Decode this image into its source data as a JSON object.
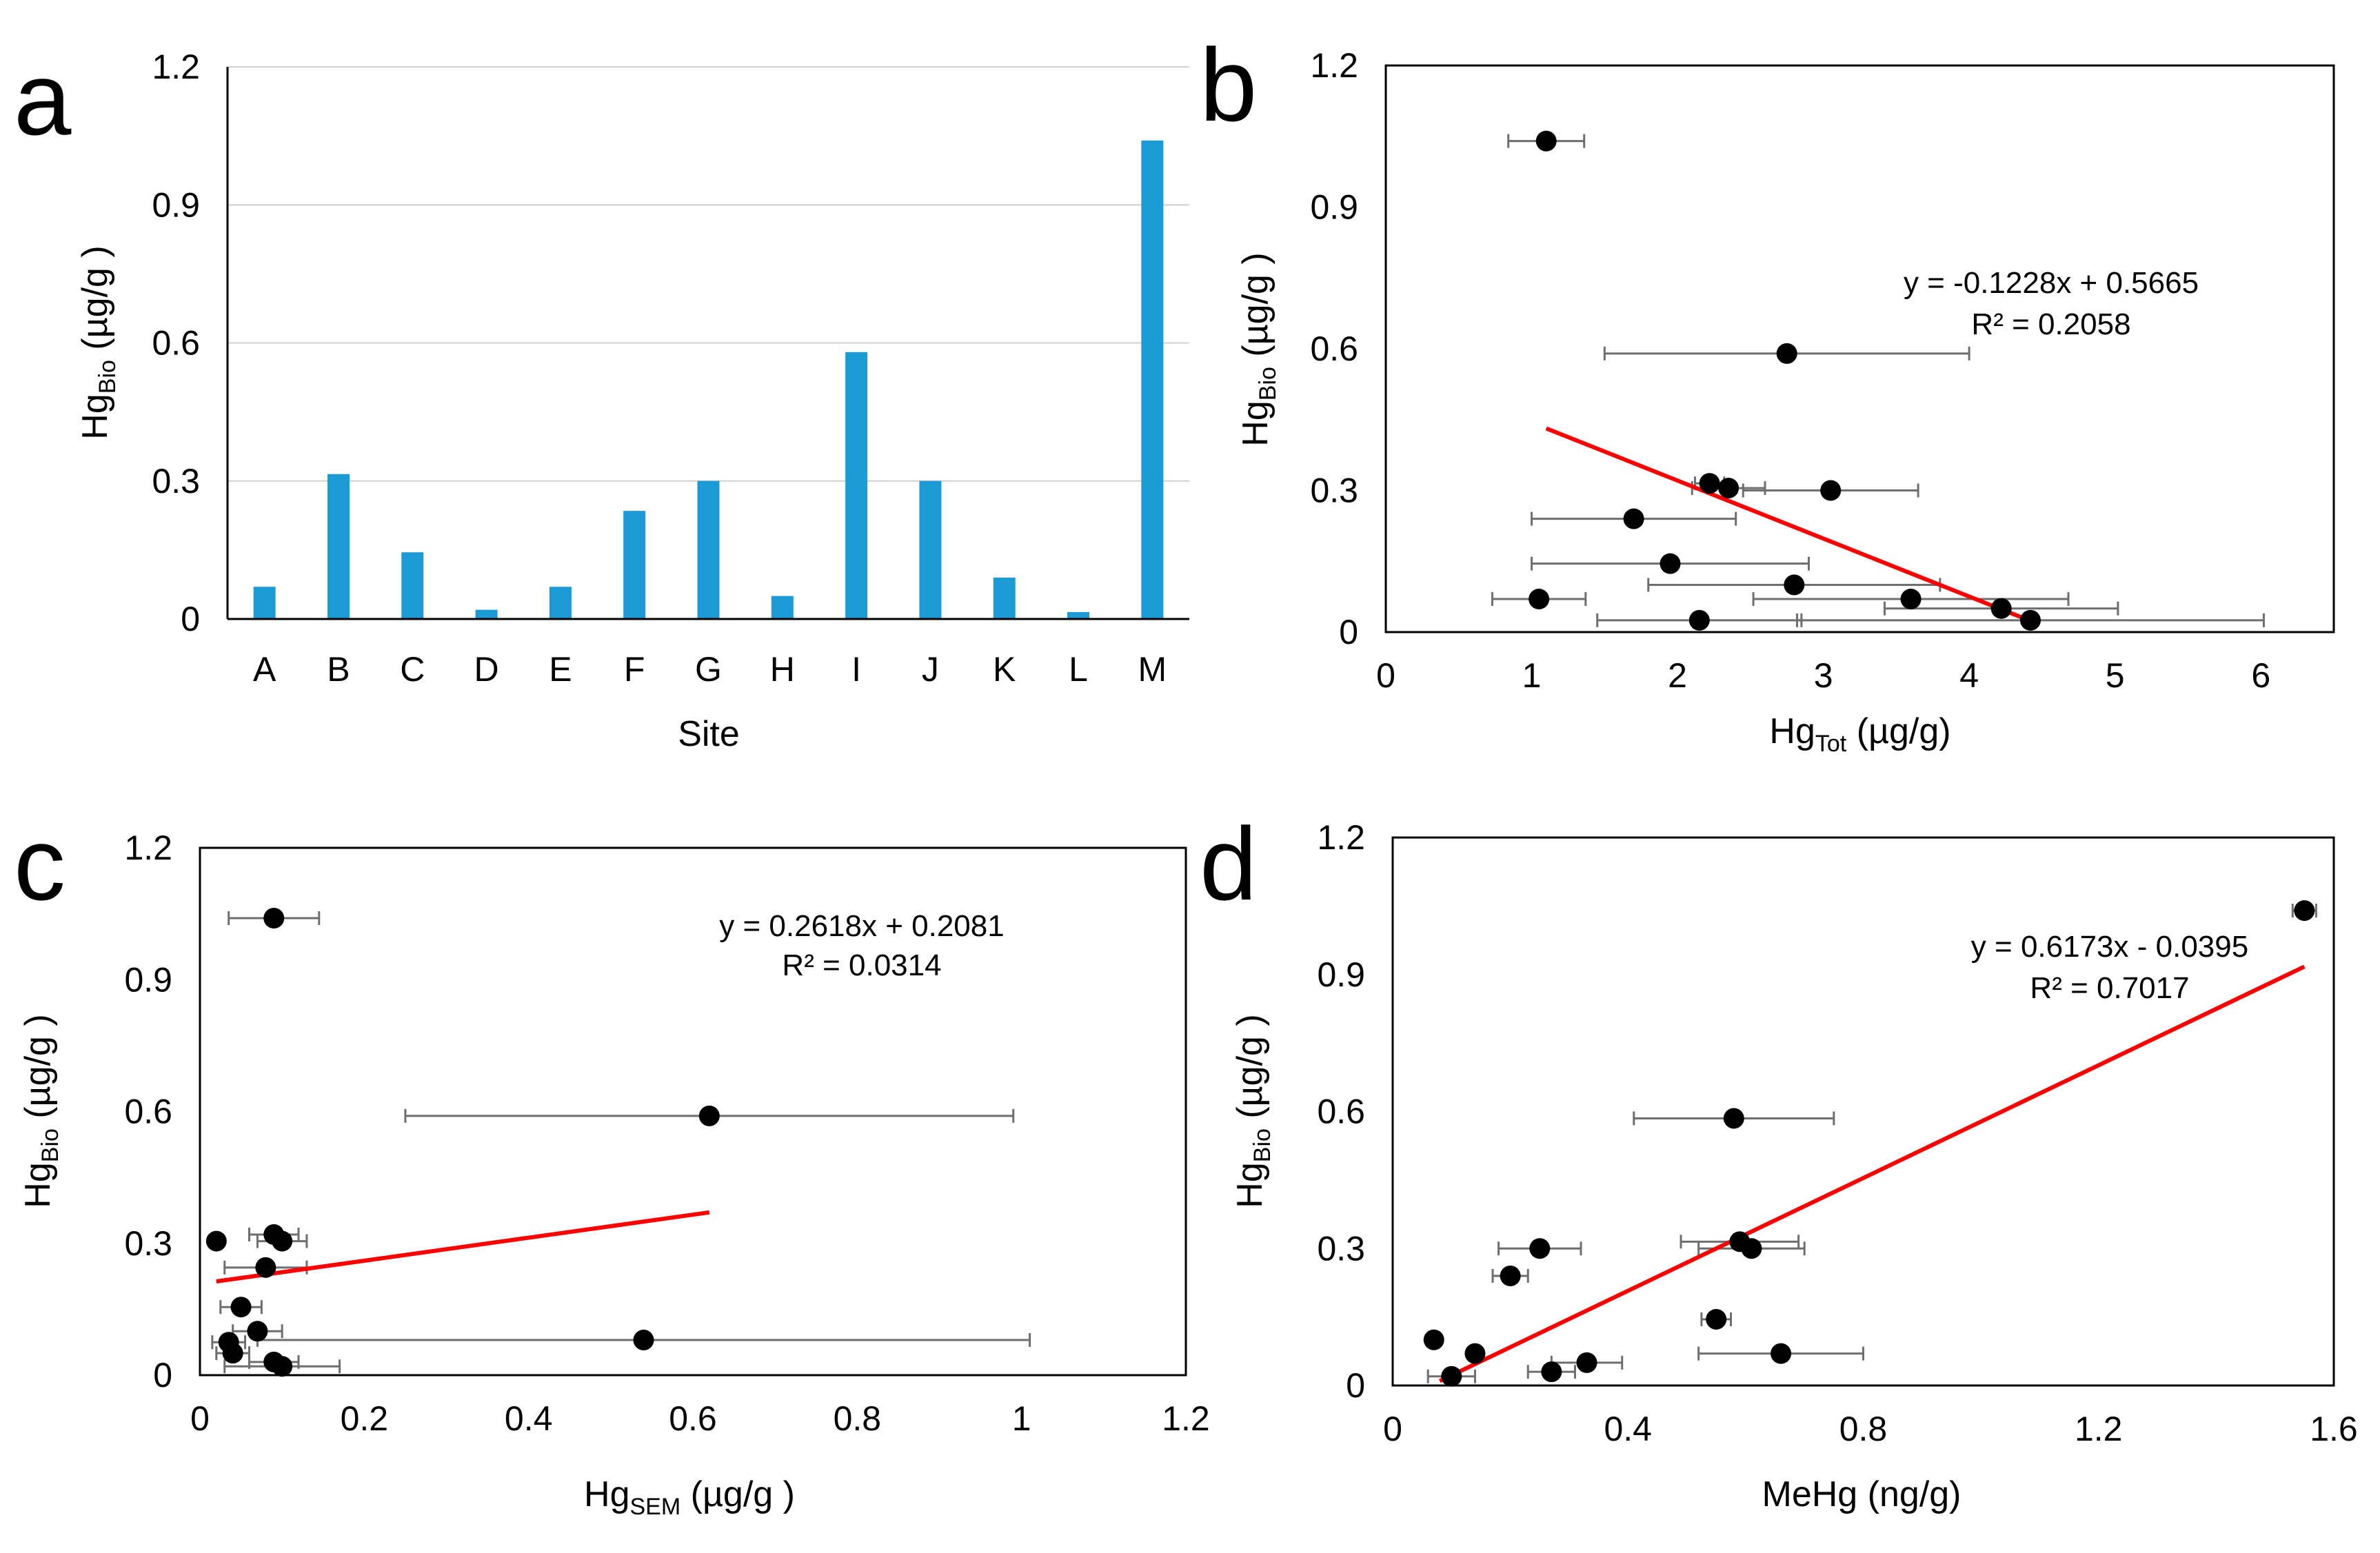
{
  "chart_data": [
    {
      "panel": "a",
      "type": "bar",
      "categories": [
        "A",
        "B",
        "C",
        "D",
        "E",
        "F",
        "G",
        "H",
        "I",
        "J",
        "K",
        "L",
        "M"
      ],
      "values": [
        0.07,
        0.315,
        0.145,
        0.02,
        0.07,
        0.235,
        0.3,
        0.05,
        0.58,
        0.3,
        0.09,
        0.015,
        1.04
      ],
      "xlabel": "Site",
      "ylabel_main": "Hg",
      "ylabel_sub": "Bio",
      "ylabel_unit": " (µg/g )",
      "ylim": [
        0,
        1.2
      ],
      "yticks": [
        0,
        0.3,
        0.6,
        0.9,
        1.2
      ],
      "ytick_labels": [
        "0",
        "0.3",
        "0.6",
        "0.9",
        "1.2"
      ],
      "bar_color": "#1b9ad6",
      "grid": true
    },
    {
      "panel": "b",
      "type": "scatter",
      "points": [
        {
          "x": 1.1,
          "y": 1.04,
          "xerr": 0.26
        },
        {
          "x": 2.75,
          "y": 0.59,
          "xerr": 1.25
        },
        {
          "x": 2.22,
          "y": 0.315,
          "xerr": 0.1
        },
        {
          "x": 2.35,
          "y": 0.305,
          "xerr": 0.25
        },
        {
          "x": 3.05,
          "y": 0.3,
          "xerr": 0.6
        },
        {
          "x": 1.7,
          "y": 0.24,
          "xerr": 0.7
        },
        {
          "x": 1.95,
          "y": 0.145,
          "xerr": 0.95
        },
        {
          "x": 2.8,
          "y": 0.1,
          "xerr": 1.0
        },
        {
          "x": 1.05,
          "y": 0.07,
          "xerr": 0.32
        },
        {
          "x": 3.6,
          "y": 0.07,
          "xerr": 1.08
        },
        {
          "x": 4.22,
          "y": 0.05,
          "xerr": 0.8
        },
        {
          "x": 2.15,
          "y": 0.025,
          "xerr": 0.7
        },
        {
          "x": 4.42,
          "y": 0.025,
          "xerr": 1.6
        }
      ],
      "trendline": {
        "x": [
          1.1,
          4.42
        ],
        "slope": -0.1228,
        "intercept": 0.5665,
        "color": "#ff0000"
      },
      "equation": "y = -0.1228x + 0.5665",
      "r_squared": "R² = 0.2058",
      "xlabel_main": "Hg",
      "xlabel_sub": "Tot",
      "xlabel_unit": " (µg/g)",
      "ylabel_main": "Hg",
      "ylabel_sub": "Bio",
      "ylabel_unit": " (µg/g )",
      "xlim": [
        0,
        6.5
      ],
      "ylim": [
        0,
        1.2
      ],
      "xticks": [
        0,
        1,
        2,
        3,
        4,
        5,
        6
      ],
      "xtick_labels": [
        "0",
        "1",
        "2",
        "3",
        "4",
        "5",
        "6"
      ],
      "yticks": [
        0,
        0.3,
        0.6,
        0.9,
        1.2
      ],
      "ytick_labels": [
        "0",
        "0.3",
        "0.6",
        "0.9",
        "1.2"
      ]
    },
    {
      "panel": "c",
      "type": "scatter",
      "points": [
        {
          "x": 0.09,
          "y": 1.04,
          "xerr": 0.055
        },
        {
          "x": 0.62,
          "y": 0.59,
          "xerr": 0.37
        },
        {
          "x": 0.02,
          "y": 0.305,
          "xerr": 0.0
        },
        {
          "x": 0.09,
          "y": 0.32,
          "xerr": 0.03
        },
        {
          "x": 0.1,
          "y": 0.305,
          "xerr": 0.03
        },
        {
          "x": 0.08,
          "y": 0.245,
          "xerr": 0.05
        },
        {
          "x": 0.05,
          "y": 0.155,
          "xerr": 0.025
        },
        {
          "x": 0.07,
          "y": 0.1,
          "xerr": 0.03
        },
        {
          "x": 0.035,
          "y": 0.075,
          "xerr": 0.02
        },
        {
          "x": 0.54,
          "y": 0.08,
          "xerr": 0.47
        },
        {
          "x": 0.04,
          "y": 0.05,
          "xerr": 0.02
        },
        {
          "x": 0.09,
          "y": 0.03,
          "xerr": 0.03
        },
        {
          "x": 0.1,
          "y": 0.02,
          "xerr": 0.07
        }
      ],
      "trendline": {
        "x": [
          0.02,
          0.62
        ],
        "slope": 0.2618,
        "intercept": 0.2081,
        "color": "#ff0000"
      },
      "equation": "y = 0.2618x + 0.2081",
      "r_squared": "R² = 0.0314",
      "xlabel_main": "Hg",
      "xlabel_sub": "SEM",
      "xlabel_unit": " (µg/g )",
      "ylabel_main": "Hg",
      "ylabel_sub": "Bio",
      "ylabel_unit": " (µg/g )",
      "xlim": [
        0,
        1.2
      ],
      "ylim": [
        0,
        1.2
      ],
      "xticks": [
        0,
        0.2,
        0.4,
        0.6,
        0.8,
        1,
        1.2
      ],
      "xtick_labels": [
        "0",
        "0.2",
        "0.4",
        "0.6",
        "0.8",
        "1",
        "1.2"
      ],
      "yticks": [
        0,
        0.3,
        0.6,
        0.9,
        1.2
      ],
      "ytick_labels": [
        "0",
        "0.3",
        "0.6",
        "0.9",
        "1.2"
      ]
    },
    {
      "panel": "d",
      "type": "scatter",
      "points": [
        {
          "x": 1.55,
          "y": 1.04,
          "xerr": 0.02
        },
        {
          "x": 0.58,
          "y": 0.585,
          "xerr": 0.17
        },
        {
          "x": 0.59,
          "y": 0.315,
          "xerr": 0.1
        },
        {
          "x": 0.61,
          "y": 0.3,
          "xerr": 0.09
        },
        {
          "x": 0.25,
          "y": 0.3,
          "xerr": 0.07
        },
        {
          "x": 0.2,
          "y": 0.24,
          "xerr": 0.03
        },
        {
          "x": 0.55,
          "y": 0.145,
          "xerr": 0.025
        },
        {
          "x": 0.07,
          "y": 0.1,
          "xerr": 0.0
        },
        {
          "x": 0.14,
          "y": 0.07,
          "xerr": 0.0
        },
        {
          "x": 0.66,
          "y": 0.07,
          "xerr": 0.14
        },
        {
          "x": 0.33,
          "y": 0.05,
          "xerr": 0.06
        },
        {
          "x": 0.27,
          "y": 0.03,
          "xerr": 0.04
        },
        {
          "x": 0.1,
          "y": 0.02,
          "xerr": 0.04
        }
      ],
      "trendline": {
        "x": [
          0.08,
          1.55
        ],
        "slope": 0.6173,
        "intercept": -0.0395,
        "color": "#ff0000"
      },
      "equation": "y = 0.6173x - 0.0395",
      "r_squared": "R² = 0.7017",
      "xlabel": "MeHg (ng/g)",
      "ylabel_main": "Hg",
      "ylabel_sub": "Bio",
      "ylabel_unit": " (µg/g )",
      "xlim": [
        0,
        1.6
      ],
      "ylim": [
        0,
        1.2
      ],
      "xticks": [
        0,
        0.4,
        0.8,
        1.2,
        1.6
      ],
      "xtick_labels": [
        "0",
        "0.4",
        "0.8",
        "1.2",
        "1.6"
      ],
      "yticks": [
        0,
        0.3,
        0.6,
        0.9,
        1.2
      ],
      "ytick_labels": [
        "0",
        "0.3",
        "0.6",
        "0.9",
        "1.2"
      ]
    }
  ]
}
